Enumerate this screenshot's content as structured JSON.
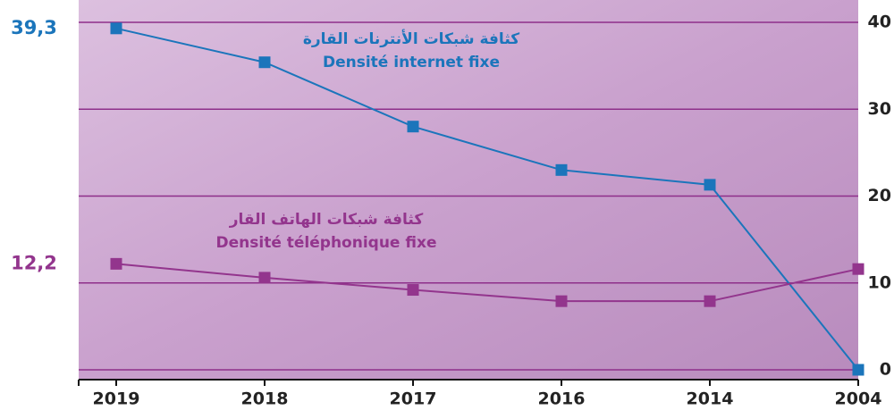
{
  "chart_data": {
    "type": "line",
    "categories": [
      "2019",
      "2018",
      "2017",
      "2016",
      "2014",
      "2004"
    ],
    "series": [
      {
        "name": "Densité internet fixe",
        "name_ar": "كثافة شبكات الأنترنات القارة",
        "color": "#1b75bb",
        "values": [
          39.3,
          35.4,
          28.0,
          23.0,
          21.3,
          0
        ],
        "value_labels": [
          "39,3",
          null,
          null,
          null,
          null,
          null
        ]
      },
      {
        "name": "Densité téléphonique fixe",
        "name_ar": "كثافة شبكات الهاتف القار",
        "color": "#93358d",
        "values": [
          12.2,
          10.6,
          9.2,
          7.9,
          7.9,
          11.6
        ],
        "value_labels": [
          "12,2",
          null,
          null,
          null,
          null,
          null
        ]
      }
    ],
    "ylim": [
      0,
      40
    ],
    "yticks": [
      0,
      10,
      20,
      30,
      40
    ],
    "grid": true,
    "grid_color": "#8e2f8a"
  }
}
